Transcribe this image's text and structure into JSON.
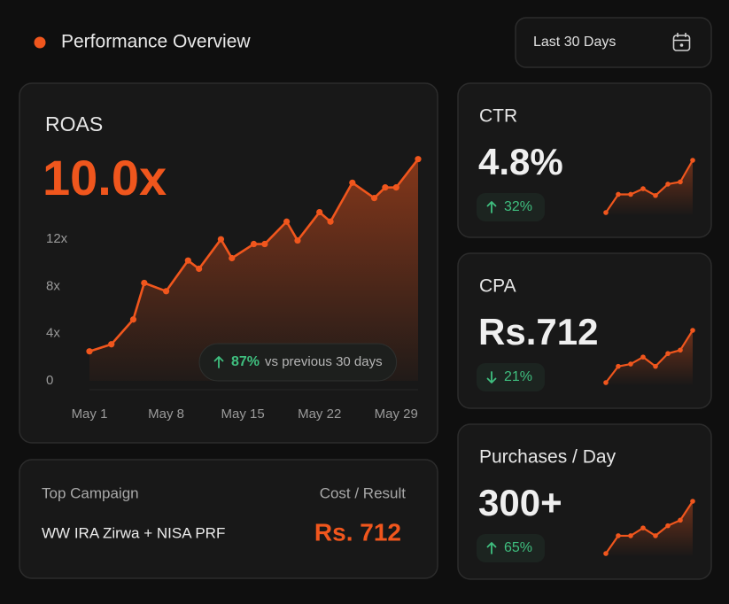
{
  "header": {
    "title": "Performance Overview",
    "date_range": "Last 30 Days"
  },
  "chart_data": [
    {
      "type": "line",
      "title": "ROAS",
      "headline": "10.0x",
      "change": "87%",
      "change_direction": "up",
      "change_note": "vs previous 30 days",
      "x": [
        1,
        3,
        5,
        6,
        8,
        10,
        11,
        13,
        14,
        16,
        17,
        19,
        20,
        22,
        23,
        25,
        27,
        28,
        29,
        31
      ],
      "values": [
        2.5,
        3.1,
        5.2,
        8.3,
        7.6,
        10.2,
        9.5,
        12,
        10.4,
        11.6,
        11.6,
        13.5,
        11.9,
        14.3,
        13.5,
        16.8,
        15.5,
        16.4,
        16.4,
        18.8
      ],
      "xlim": [
        1,
        31
      ],
      "xticks": [
        {
          "value": 1,
          "label": "May 1"
        },
        {
          "value": 8,
          "label": "May 8"
        },
        {
          "value": 15,
          "label": "May 15"
        },
        {
          "value": 22,
          "label": "May 22"
        },
        {
          "value": 29,
          "label": "May 29"
        }
      ],
      "ylim": [
        0,
        19
      ],
      "yticks": [
        0,
        {
          "value": 4,
          "label": "4x"
        },
        {
          "value": 8,
          "label": "8x"
        },
        {
          "value": 12,
          "label": "12x"
        }
      ],
      "color": "#f0561d"
    },
    {
      "type": "sparkline",
      "title": "CTR",
      "headline": "4.8%",
      "change": "32%",
      "change_direction": "up",
      "values": [
        1,
        2.6,
        2.6,
        3.1,
        2.5,
        3.5,
        3.7,
        5.6
      ],
      "color": "#f0561d"
    },
    {
      "type": "sparkline",
      "title": "CPA",
      "headline": "Rs.712",
      "change": "21%",
      "change_direction": "down",
      "values": [
        1,
        2.4,
        2.6,
        3.2,
        2.4,
        3.5,
        3.8,
        5.5
      ],
      "color": "#f0561d"
    },
    {
      "type": "sparkline",
      "title": "Purchases / Day",
      "headline": "300+",
      "change": "65%",
      "change_direction": "up",
      "values": [
        1,
        2.6,
        2.6,
        3.3,
        2.6,
        3.5,
        4,
        5.7
      ],
      "color": "#f0561d"
    }
  ],
  "campaign": {
    "label": "Top Campaign",
    "name": "WW IRA Zirwa + NISA PRF",
    "metric_label": "Cost / Result",
    "metric_value": "Rs. 712"
  }
}
